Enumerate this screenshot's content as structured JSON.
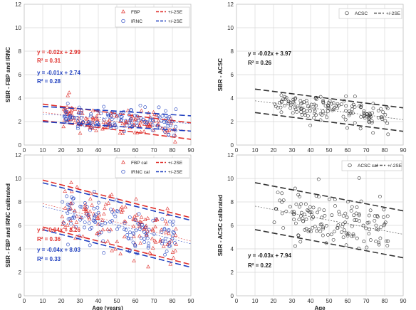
{
  "chart_data": [
    {
      "type": "scatter",
      "panel": "top-left",
      "ylabel": "SBR - FBP and IRNC",
      "xlabel": "",
      "xlim": [
        0,
        90
      ],
      "ylim": [
        0,
        12
      ],
      "xticks": [
        "0",
        "10",
        "20",
        "30",
        "40",
        "50",
        "60",
        "70",
        "80",
        "90"
      ],
      "yticks": [
        "0",
        "2",
        "4",
        "6",
        "8",
        "10",
        "12"
      ],
      "legend": {
        "placement": "top-right",
        "entries": [
          {
            "label": "FBP",
            "marker": "triangle",
            "color": "#e0302c"
          },
          {
            "label": "+/-2SE",
            "line": "dashed",
            "color": "#e0302c"
          },
          {
            "label": "IRNC",
            "marker": "circle",
            "color": "#1f3fbf"
          },
          {
            "label": "+/-2SE",
            "line": "dashed",
            "color": "#1f3fbf"
          }
        ]
      },
      "annotations": [
        {
          "text": "y = -0.02x + 2.99",
          "color": "#e0302c"
        },
        {
          "text": "R² = 0.31",
          "color": "#e0302c"
        },
        {
          "text": "y = -0.01x + 2.74",
          "color": "#1f3fbf"
        },
        {
          "text": "R² = 0.28",
          "color": "#1f3fbf"
        }
      ],
      "series": [
        {
          "name": "FBP",
          "marker": "triangle",
          "color": "#e0302c",
          "slope": -0.02,
          "intercept": 2.99,
          "x_range": [
            20,
            82
          ],
          "spread": 0.55,
          "band": 0.7,
          "n": 130,
          "seed": 11
        },
        {
          "name": "IRNC",
          "marker": "circle",
          "color": "#1f3fbf",
          "slope": -0.01,
          "intercept": 2.74,
          "x_range": [
            20,
            82
          ],
          "spread": 0.5,
          "band": 0.65,
          "n": 130,
          "seed": 23
        }
      ]
    },
    {
      "type": "scatter",
      "panel": "top-right",
      "ylabel": "SBR - ACSC",
      "xlabel": "",
      "xlim": [
        0,
        90
      ],
      "ylim": [
        0,
        12
      ],
      "xticks": [
        "0",
        "10",
        "20",
        "30",
        "40",
        "50",
        "60",
        "70",
        "80",
        "90"
      ],
      "yticks": [
        "0",
        "2",
        "4",
        "6",
        "8",
        "10",
        "12"
      ],
      "legend": {
        "placement": "top-right",
        "entries": [
          {
            "label": "ACSC",
            "marker": "circle",
            "color": "#333333"
          },
          {
            "label": "+/-2SE",
            "line": "dashed",
            "color": "#555555"
          }
        ]
      },
      "annotations": [
        {
          "text": "y = -0.02x + 3.97",
          "color": "#222222"
        },
        {
          "text": "R² = 0.26",
          "color": "#222222"
        }
      ],
      "series": [
        {
          "name": "ACSC",
          "marker": "circle",
          "color": "#333333",
          "slope": -0.02,
          "intercept": 3.97,
          "x_range": [
            20,
            82
          ],
          "spread": 0.6,
          "band": 1.0,
          "n": 150,
          "seed": 37
        }
      ]
    },
    {
      "type": "scatter",
      "panel": "bottom-left",
      "ylabel": "SBR - FBP and IRNC calibrated",
      "xlabel": "Age (years)",
      "xlim": [
        0,
        90
      ],
      "ylim": [
        0,
        12
      ],
      "xticks": [
        "0",
        "10",
        "20",
        "30",
        "40",
        "50",
        "60",
        "70",
        "80",
        "90"
      ],
      "yticks": [
        "0",
        "2",
        "4",
        "6",
        "8",
        "10",
        "12"
      ],
      "legend": {
        "placement": "top-right",
        "entries": [
          {
            "label": "FBP cal",
            "marker": "triangle",
            "color": "#e0302c"
          },
          {
            "label": "+/-2SE",
            "line": "dashed",
            "color": "#e0302c"
          },
          {
            "label": "IRNC cal",
            "marker": "circle",
            "color": "#1f3fbf"
          },
          {
            "label": "+/-2SE",
            "line": "dashed",
            "color": "#1f3fbf"
          }
        ]
      },
      "annotations": [
        {
          "text": "y = -0.04x + 8.26",
          "color": "#e0302c"
        },
        {
          "text": "R² = 0.36",
          "color": "#e0302c"
        },
        {
          "text": "y = -0.04x + 8.03",
          "color": "#1f3fbf"
        },
        {
          "text": "R² = 0.33",
          "color": "#1f3fbf"
        }
      ],
      "series": [
        {
          "name": "FBP cal",
          "marker": "triangle",
          "color": "#e0302c",
          "slope": -0.04,
          "intercept": 8.26,
          "x_range": [
            20,
            82
          ],
          "spread": 1.1,
          "band": 2.0,
          "n": 130,
          "seed": 53
        },
        {
          "name": "IRNC cal",
          "marker": "circle",
          "color": "#1f3fbf",
          "slope": -0.04,
          "intercept": 8.03,
          "x_range": [
            20,
            82
          ],
          "spread": 1.05,
          "band": 2.0,
          "n": 130,
          "seed": 71
        }
      ]
    },
    {
      "type": "scatter",
      "panel": "bottom-right",
      "ylabel": "SBR - ACSC calibrated",
      "xlabel": "Age",
      "xlim": [
        0,
        90
      ],
      "ylim": [
        0,
        12
      ],
      "xticks": [
        "0",
        "10",
        "20",
        "30",
        "40",
        "50",
        "60",
        "70",
        "80",
        "90"
      ],
      "yticks": [
        "0",
        "2",
        "4",
        "6",
        "8",
        "10",
        "12"
      ],
      "legend": {
        "placement": "top-right",
        "entries": [
          {
            "label": "ACSC cal",
            "marker": "circle",
            "color": "#333333"
          },
          {
            "label": "+/-2SE",
            "line": "dashed",
            "color": "#555555"
          }
        ]
      },
      "annotations": [
        {
          "text": "y = -0.03x + 7.94",
          "color": "#222222"
        },
        {
          "text": "R² = 0.22",
          "color": "#222222"
        }
      ],
      "series": [
        {
          "name": "ACSC cal",
          "marker": "circle",
          "color": "#333333",
          "slope": -0.03,
          "intercept": 7.94,
          "x_range": [
            20,
            82
          ],
          "spread": 1.1,
          "band": 2.0,
          "n": 150,
          "seed": 89
        }
      ]
    }
  ]
}
